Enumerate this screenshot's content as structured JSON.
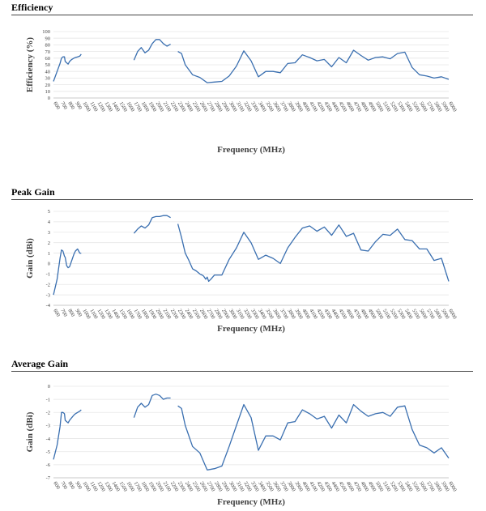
{
  "chart_data": [
    {
      "type": "line",
      "title": "Efficiency",
      "xlabel": "Frequency (MHz)",
      "ylabel": "Efficiency (%)",
      "ylim": [
        0,
        100
      ],
      "yticks": [
        0,
        10,
        20,
        30,
        40,
        50,
        60,
        70,
        80,
        90,
        100
      ],
      "xticks": [
        600,
        700,
        800,
        900,
        1000,
        1100,
        1200,
        1300,
        1400,
        1500,
        1600,
        1700,
        1800,
        1900,
        2000,
        2100,
        2200,
        2300,
        2400,
        2500,
        2600,
        2700,
        2800,
        2900,
        3000,
        3100,
        3200,
        3300,
        3400,
        3500,
        3600,
        3700,
        3800,
        3900,
        4000,
        4100,
        4200,
        4300,
        4400,
        4500,
        4600,
        4700,
        4800,
        4900,
        5000,
        5100,
        5200,
        5300,
        5400,
        5500,
        5600,
        5700,
        5800,
        5900,
        6000
      ],
      "xlim": [
        600,
        6000
      ],
      "grid": true,
      "line_color": "#3a6fb0",
      "segments": [
        [
          [
            600,
            25
          ],
          [
            650,
            40
          ],
          [
            690,
            52
          ],
          [
            710,
            60
          ],
          [
            730,
            62
          ],
          [
            750,
            62
          ],
          [
            760,
            55
          ],
          [
            780,
            53
          ],
          [
            800,
            51
          ],
          [
            820,
            55
          ],
          [
            850,
            58
          ],
          [
            880,
            60
          ],
          [
            900,
            61
          ],
          [
            930,
            62
          ],
          [
            960,
            63
          ],
          [
            980,
            66
          ]
        ],
        [
          [
            1700,
            57
          ],
          [
            1750,
            70
          ],
          [
            1800,
            76
          ],
          [
            1850,
            68
          ],
          [
            1900,
            72
          ],
          [
            1950,
            82
          ],
          [
            2000,
            88
          ],
          [
            2050,
            88
          ],
          [
            2100,
            82
          ],
          [
            2150,
            78
          ],
          [
            2200,
            81
          ]
        ],
        [
          [
            2300,
            70
          ],
          [
            2350,
            67
          ],
          [
            2400,
            50
          ],
          [
            2500,
            35
          ],
          [
            2600,
            31
          ],
          [
            2700,
            23
          ],
          [
            2800,
            24
          ],
          [
            2900,
            25
          ],
          [
            3000,
            33
          ],
          [
            3100,
            48
          ],
          [
            3200,
            71
          ],
          [
            3300,
            56
          ],
          [
            3400,
            32
          ],
          [
            3500,
            40
          ],
          [
            3600,
            40
          ],
          [
            3700,
            38
          ],
          [
            3800,
            52
          ],
          [
            3900,
            53
          ],
          [
            4000,
            65
          ],
          [
            4100,
            61
          ],
          [
            4200,
            56
          ],
          [
            4300,
            58
          ],
          [
            4400,
            47
          ],
          [
            4500,
            61
          ],
          [
            4600,
            53
          ],
          [
            4700,
            72
          ],
          [
            4800,
            64
          ],
          [
            4900,
            57
          ],
          [
            5000,
            61
          ],
          [
            5100,
            62
          ],
          [
            5200,
            59
          ],
          [
            5300,
            67
          ],
          [
            5400,
            69
          ],
          [
            5500,
            46
          ],
          [
            5600,
            35
          ],
          [
            5700,
            33
          ],
          [
            5800,
            30
          ],
          [
            5900,
            32
          ],
          [
            6000,
            28
          ]
        ]
      ]
    },
    {
      "type": "line",
      "title": "Peak Gain",
      "xlabel": "Frequency (MHz)",
      "ylabel": "Gain (dBi)",
      "ylim": [
        -4,
        5
      ],
      "yticks": [
        -4,
        -3,
        -2,
        -1,
        0,
        1,
        2,
        3,
        4,
        5
      ],
      "xticks": [
        600,
        700,
        800,
        900,
        1000,
        1100,
        1200,
        1300,
        1400,
        1500,
        1600,
        1700,
        1800,
        1900,
        2000,
        2100,
        2200,
        2300,
        2400,
        2500,
        2600,
        2700,
        2800,
        2900,
        3000,
        3100,
        3200,
        3300,
        3400,
        3500,
        3600,
        3700,
        3800,
        3900,
        4000,
        4100,
        4200,
        4300,
        4400,
        4500,
        4600,
        4700,
        4800,
        4900,
        5000,
        5100,
        5200,
        5300,
        5400,
        5500,
        5600,
        5700,
        5800,
        5900,
        6000
      ],
      "xlim": [
        600,
        6000
      ],
      "grid": true,
      "line_color": "#3a6fb0",
      "segments": [
        [
          [
            600,
            -3.0
          ],
          [
            650,
            -1.5
          ],
          [
            690,
            0.5
          ],
          [
            710,
            1.3
          ],
          [
            730,
            1.2
          ],
          [
            750,
            0.7
          ],
          [
            760,
            0.6
          ],
          [
            780,
            -0.2
          ],
          [
            800,
            -0.4
          ],
          [
            820,
            -0.3
          ],
          [
            850,
            0.3
          ],
          [
            880,
            0.9
          ],
          [
            900,
            1.2
          ],
          [
            930,
            1.4
          ],
          [
            960,
            1.0
          ],
          [
            980,
            1.0
          ]
        ],
        [
          [
            1700,
            2.9
          ],
          [
            1750,
            3.3
          ],
          [
            1800,
            3.6
          ],
          [
            1850,
            3.4
          ],
          [
            1900,
            3.7
          ],
          [
            1950,
            4.4
          ],
          [
            2000,
            4.5
          ],
          [
            2050,
            4.5
          ],
          [
            2100,
            4.6
          ],
          [
            2150,
            4.6
          ],
          [
            2200,
            4.4
          ]
        ],
        [
          [
            2300,
            3.8
          ],
          [
            2350,
            2.5
          ],
          [
            2400,
            1.0
          ],
          [
            2450,
            0.3
          ],
          [
            2500,
            -0.5
          ],
          [
            2550,
            -0.7
          ],
          [
            2600,
            -1.0
          ],
          [
            2630,
            -1.1
          ],
          [
            2650,
            -1.2
          ],
          [
            2680,
            -1.5
          ],
          [
            2700,
            -1.3
          ],
          [
            2720,
            -1.7
          ],
          [
            2750,
            -1.5
          ],
          [
            2800,
            -1.1
          ],
          [
            2900,
            -1.1
          ],
          [
            3000,
            0.4
          ],
          [
            3100,
            1.5
          ],
          [
            3200,
            3.0
          ],
          [
            3300,
            2.0
          ],
          [
            3400,
            0.4
          ],
          [
            3500,
            0.8
          ],
          [
            3600,
            0.5
          ],
          [
            3700,
            0.0
          ],
          [
            3800,
            1.5
          ],
          [
            3900,
            2.5
          ],
          [
            4000,
            3.4
          ],
          [
            4100,
            3.6
          ],
          [
            4200,
            3.1
          ],
          [
            4300,
            3.5
          ],
          [
            4400,
            2.7
          ],
          [
            4500,
            3.7
          ],
          [
            4600,
            2.6
          ],
          [
            4700,
            2.9
          ],
          [
            4800,
            1.3
          ],
          [
            4900,
            1.2
          ],
          [
            5000,
            2.1
          ],
          [
            5100,
            2.8
          ],
          [
            5200,
            2.7
          ],
          [
            5300,
            3.3
          ],
          [
            5400,
            2.3
          ],
          [
            5500,
            2.2
          ],
          [
            5600,
            1.4
          ],
          [
            5700,
            1.4
          ],
          [
            5800,
            0.3
          ],
          [
            5900,
            0.5
          ],
          [
            6000,
            -1.7
          ]
        ]
      ]
    },
    {
      "type": "line",
      "title": "Average Gain",
      "xlabel": "Frequency (MHz)",
      "ylabel": "Gain (dBi)",
      "ylim": [
        -7,
        0
      ],
      "yticks": [
        -7,
        -6,
        -5,
        -4,
        -3,
        -2,
        -1,
        0
      ],
      "xticks": [
        600,
        700,
        800,
        900,
        1000,
        1100,
        1200,
        1300,
        1400,
        1500,
        1600,
        1700,
        1800,
        1900,
        2000,
        2100,
        2200,
        2300,
        2400,
        2500,
        2600,
        2700,
        2800,
        2900,
        3000,
        3100,
        3200,
        3300,
        3400,
        3500,
        3600,
        3700,
        3800,
        3900,
        4000,
        4100,
        4200,
        4300,
        4400,
        4500,
        4600,
        4700,
        4800,
        4900,
        5000,
        5100,
        5200,
        5300,
        5400,
        5500,
        5600,
        5700,
        5800,
        5900,
        6000
      ],
      "xlim": [
        600,
        6000
      ],
      "grid": true,
      "line_color": "#3a6fb0",
      "segments": [
        [
          [
            600,
            -5.6
          ],
          [
            650,
            -4.5
          ],
          [
            690,
            -3.1
          ],
          [
            710,
            -2.0
          ],
          [
            730,
            -2.0
          ],
          [
            750,
            -2.1
          ],
          [
            760,
            -2.6
          ],
          [
            780,
            -2.7
          ],
          [
            800,
            -2.8
          ],
          [
            820,
            -2.6
          ],
          [
            850,
            -2.4
          ],
          [
            880,
            -2.2
          ],
          [
            900,
            -2.1
          ],
          [
            930,
            -2.0
          ],
          [
            960,
            -1.9
          ],
          [
            980,
            -1.8
          ]
        ],
        [
          [
            1700,
            -2.4
          ],
          [
            1750,
            -1.6
          ],
          [
            1800,
            -1.3
          ],
          [
            1850,
            -1.6
          ],
          [
            1900,
            -1.4
          ],
          [
            1950,
            -0.7
          ],
          [
            2000,
            -0.6
          ],
          [
            2050,
            -0.7
          ],
          [
            2100,
            -1.0
          ],
          [
            2150,
            -0.9
          ],
          [
            2200,
            -0.9
          ]
        ],
        [
          [
            2300,
            -1.5
          ],
          [
            2350,
            -1.7
          ],
          [
            2400,
            -3.0
          ],
          [
            2500,
            -4.6
          ],
          [
            2600,
            -5.1
          ],
          [
            2700,
            -6.4
          ],
          [
            2800,
            -6.3
          ],
          [
            2900,
            -6.1
          ],
          [
            3000,
            -4.6
          ],
          [
            3100,
            -3.0
          ],
          [
            3200,
            -1.4
          ],
          [
            3300,
            -2.4
          ],
          [
            3400,
            -4.9
          ],
          [
            3500,
            -3.8
          ],
          [
            3600,
            -3.8
          ],
          [
            3700,
            -4.1
          ],
          [
            3800,
            -2.8
          ],
          [
            3900,
            -2.7
          ],
          [
            4000,
            -1.8
          ],
          [
            4100,
            -2.1
          ],
          [
            4200,
            -2.5
          ],
          [
            4300,
            -2.3
          ],
          [
            4400,
            -3.2
          ],
          [
            4500,
            -2.2
          ],
          [
            4600,
            -2.8
          ],
          [
            4700,
            -1.4
          ],
          [
            4800,
            -1.9
          ],
          [
            4900,
            -2.3
          ],
          [
            5000,
            -2.1
          ],
          [
            5100,
            -2.0
          ],
          [
            5200,
            -2.3
          ],
          [
            5300,
            -1.6
          ],
          [
            5400,
            -1.5
          ],
          [
            5500,
            -3.3
          ],
          [
            5600,
            -4.5
          ],
          [
            5700,
            -4.7
          ],
          [
            5800,
            -5.1
          ],
          [
            5900,
            -4.7
          ],
          [
            6000,
            -5.5
          ]
        ]
      ]
    }
  ]
}
